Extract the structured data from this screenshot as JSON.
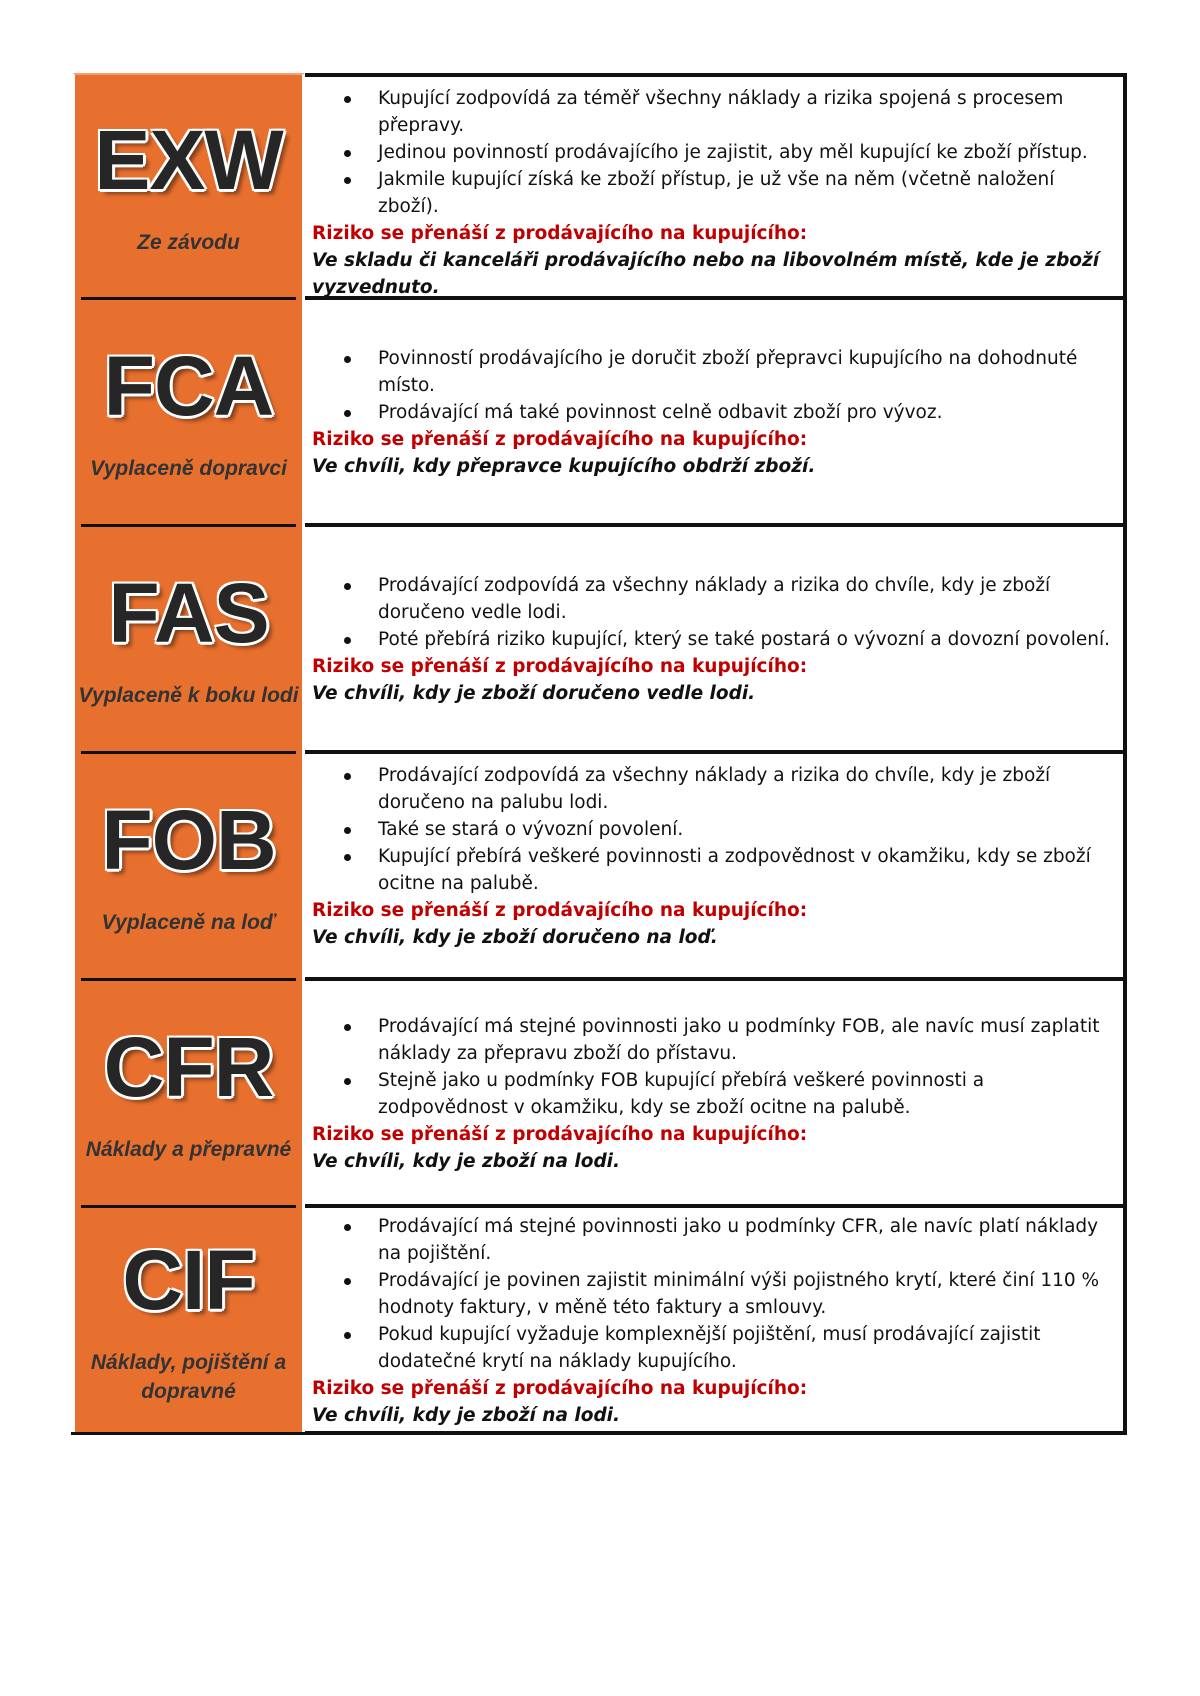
{
  "risk_label": "Riziko se přenáší z prodávajícího na kupujícího:",
  "colors": {
    "accent": "#E8702F",
    "risk": "#C00000"
  },
  "rows": [
    {
      "code": "EXW",
      "subtitle": "Ze závodu",
      "bullets": [
        "Kupující zodpovídá za téměř všechny náklady a rizika spojená s procesem přepravy.",
        "Jedinou povinností prodávajícího je zajistit, aby měl kupující ke zboží přístup.",
        "Jakmile kupující získá ke zboží přístup, je už vše na něm (včetně naložení zboží)."
      ],
      "risk_point": "Ve skladu či kanceláři prodávajícího nebo na libovolném místě, kde je zboží vyzvednuto."
    },
    {
      "code": "FCA",
      "subtitle": "Vyplaceně dopravci",
      "bullets": [
        "Povinností prodávajícího je doručit zboží přepravci kupujícího na dohodnuté místo.",
        "Prodávající má také povinnost celně odbavit zboží pro vývoz."
      ],
      "risk_point": "Ve chvíli, kdy přepravce kupujícího obdrží zboží."
    },
    {
      "code": "FAS",
      "subtitle": "Vyplaceně k boku lodi",
      "bullets": [
        "Prodávající zodpovídá za všechny náklady a rizika do chvíle, kdy je zboží doručeno vedle lodi.",
        "Poté přebírá riziko kupující, který se také postará o vývozní a dovozní povolení."
      ],
      "risk_point": "Ve chvíli, kdy je zboží doručeno vedle lodi."
    },
    {
      "code": "FOB",
      "subtitle": "Vyplaceně na loď",
      "bullets": [
        "Prodávající zodpovídá za všechny náklady a rizika do chvíle, kdy je zboží doručeno na palubu lodi.",
        "Také se stará o vývozní povolení.",
        "Kupující přebírá veškeré povinnosti a zodpovědnost v okamžiku, kdy se zboží ocitne na palubě."
      ],
      "risk_point": "Ve chvíli, kdy je zboží doručeno na loď."
    },
    {
      "code": "CFR",
      "subtitle": "Náklady a přepravné",
      "bullets": [
        "Prodávající má stejné povinnosti jako u podmínky FOB, ale navíc musí zaplatit náklady za přepravu zboží do přístavu.",
        "Stejně jako u podmínky FOB kupující přebírá veškeré povinnosti a zodpovědnost v okamžiku, kdy se zboží ocitne na palubě."
      ],
      "risk_point": "Ve chvíli, kdy je zboží na lodi."
    },
    {
      "code": "CIF",
      "subtitle": "Náklady, pojištění a dopravné",
      "bullets": [
        "Prodávající má stejné povinnosti jako u podmínky CFR, ale navíc platí náklady na pojištění.",
        "Prodávající je povinen zajistit minimální výši pojistného krytí, které činí 110 % hodnoty faktury, v měně této faktury a smlouvy.",
        "Pokud kupující vyžaduje komplexnější pojištění, musí prodávající zajistit dodatečné krytí na náklady kupujícího."
      ],
      "risk_point": "Ve chvíli, kdy je zboží na lodi."
    }
  ]
}
